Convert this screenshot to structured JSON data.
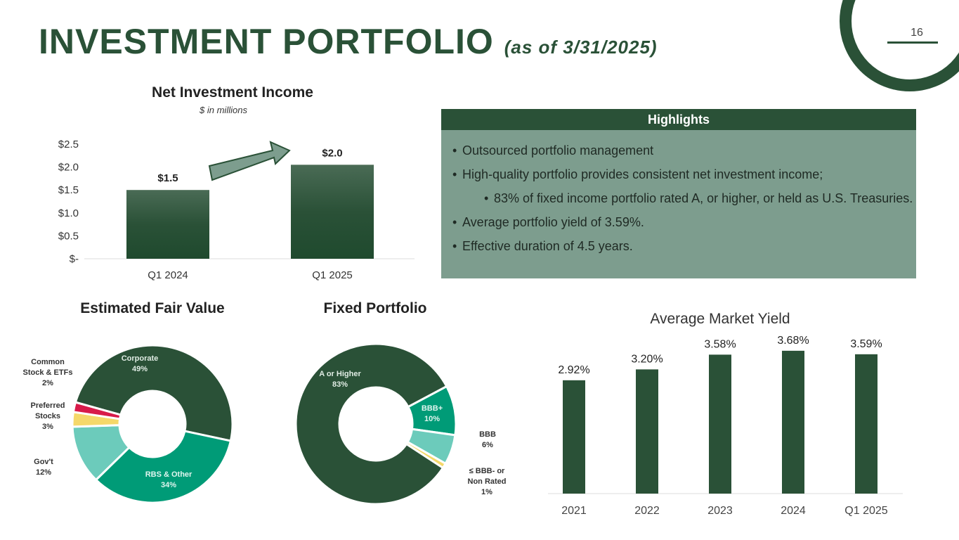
{
  "header": {
    "title": "INVESTMENT PORTFOLIO",
    "subtitle": "(as of 3/31/2025)",
    "page_number": "16"
  },
  "highlights": {
    "title": "Highlights",
    "items": [
      {
        "text": "Outsourced portfolio management",
        "level": 1
      },
      {
        "text": "High-quality portfolio provides consistent net investment income;",
        "level": 1
      },
      {
        "text": "83% of fixed income portfolio rated A, or higher, or held as U.S. Treasuries.",
        "level": 2
      },
      {
        "text": "Average portfolio yield of 3.59%.",
        "level": 1
      },
      {
        "text": "Effective duration of 4.5 years.",
        "level": 1
      }
    ]
  },
  "colors": {
    "dark": "#2a5137",
    "teal": "#009b77",
    "light_teal": "#6ccbbb",
    "yellow": "#f5d86a",
    "red": "#d81b4a"
  },
  "chart_data": [
    {
      "type": "bar",
      "title": "Net Investment Income",
      "subtitle": "$ in millions",
      "categories": [
        "Q1 2024",
        "Q1 2025"
      ],
      "values": [
        1.5,
        2.05
      ],
      "data_labels": [
        "$1.5",
        "$2.0"
      ],
      "yticks": [
        "$-",
        "$0.5",
        "$1.0",
        "$1.5",
        "$2.0",
        "$2.5"
      ],
      "ylim": [
        0,
        2.5
      ]
    },
    {
      "type": "pie",
      "title": "Estimated Fair Value",
      "slices": [
        {
          "label": "Corporate",
          "value": 49,
          "pct": "49%",
          "color": "#2a5137"
        },
        {
          "label": "RBS & Other",
          "value": 34,
          "pct": "34%",
          "color": "#009b77"
        },
        {
          "label": "Gov't",
          "value": 12,
          "pct": "12%",
          "color": "#6ccbbb"
        },
        {
          "label": "Preferred Stocks",
          "value": 3,
          "pct": "3%",
          "color": "#f5d86a"
        },
        {
          "label": "Common Stock & ETFs",
          "value": 2,
          "pct": "2%",
          "color": "#d81b4a"
        }
      ]
    },
    {
      "type": "pie",
      "title": "Fixed Portfolio",
      "slices": [
        {
          "label": "BBB+",
          "value": 10,
          "pct": "10%",
          "color": "#009b77"
        },
        {
          "label": "BBB",
          "value": 6,
          "pct": "6%",
          "color": "#6ccbbb"
        },
        {
          "label": "≤ BBB- or Non Rated",
          "value": 1,
          "pct": "1%",
          "color": "#f5d86a"
        },
        {
          "label": "A or Higher",
          "value": 83,
          "pct": "83%",
          "color": "#2a5137"
        }
      ]
    },
    {
      "type": "bar",
      "title": "Average Market Yield",
      "categories": [
        "2021",
        "2022",
        "2023",
        "2024",
        "Q1 2025"
      ],
      "values": [
        2.92,
        3.2,
        3.58,
        3.68,
        3.59
      ],
      "data_labels": [
        "2.92%",
        "3.20%",
        "3.58%",
        "3.68%",
        "3.59%"
      ]
    }
  ]
}
